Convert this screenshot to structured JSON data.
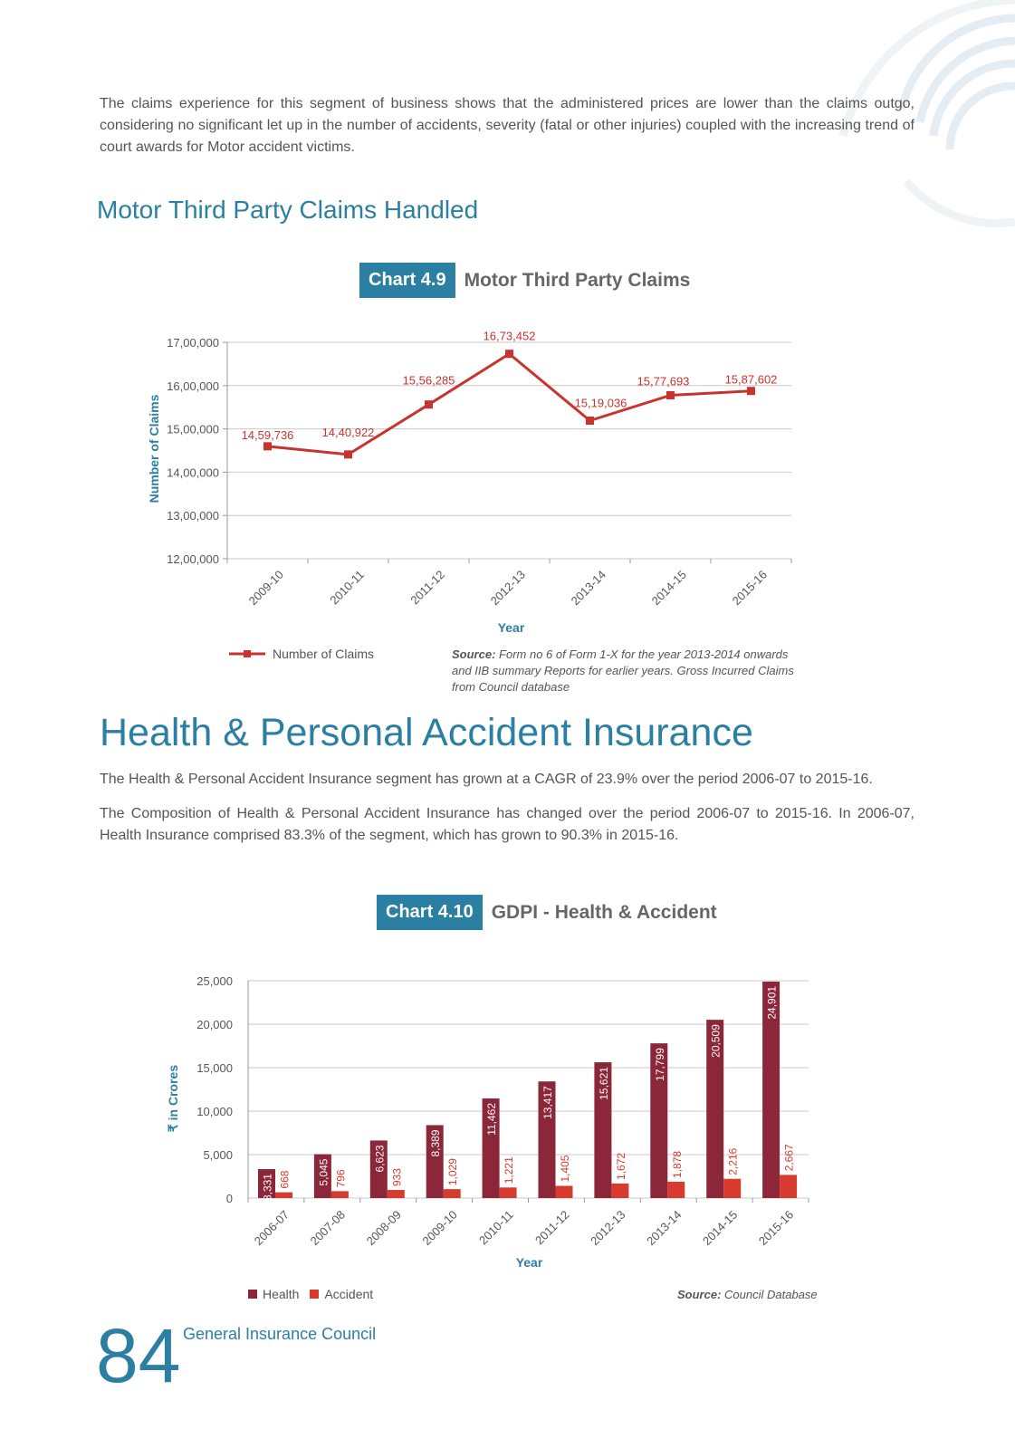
{
  "intro": {
    "text": "The claims experience for this segment of business shows that the administered prices are lower than the claims outgo, considering no significant let up in the number of accidents, severity (fatal or other injuries) coupled with the increasing trend of court awards for Motor accident victims."
  },
  "section1": {
    "heading": "Motor Third Party Claims Handled"
  },
  "chart1": {
    "number": "Chart 4.9",
    "name": "Motor Third Party Claims"
  },
  "chart1_legend": "Number of Claims",
  "chart1_source": {
    "label": "Source:",
    "text": "Form no 6 of Form 1-X for the year 2013-2014 onwards and IIB summary Reports for earlier years. Gross Incurred Claims from Council database"
  },
  "section2": {
    "heading": "Health & Personal Accident Insurance",
    "para1": "The Health & Personal Accident Insurance segment has grown at a CAGR of 23.9% over the period 2006-07 to 2015-16.",
    "para2": "The Composition of Health & Personal Accident Insurance has changed over the period 2006-07 to 2015-16. In 2006-07, Health Insurance comprised 83.3% of the segment, which has grown to 90.3% in 2015-16."
  },
  "chart2": {
    "number": "Chart 4.10",
    "name": "GDPI - Health & Accident"
  },
  "chart2_legend": {
    "health": "Health",
    "accident": "Accident"
  },
  "chart2_source": {
    "label": "Source:",
    "text": "Council Database"
  },
  "footer": {
    "page": "84",
    "org": "General Insurance Council"
  },
  "colors": {
    "accent": "#2b7fa2",
    "line": "#c8332e",
    "health": "#8c2639",
    "accident": "#d93a2e"
  },
  "chart_data": [
    {
      "type": "line",
      "title": "Motor Third Party Claims",
      "xlabel": "Year",
      "ylabel": "Number of Claims",
      "ylim": [
        1200000,
        1700000
      ],
      "yticks": [
        1200000,
        1300000,
        1400000,
        1500000,
        1600000,
        1700000
      ],
      "ytick_labels": [
        "12,00,000",
        "13,00,000",
        "14,00,000",
        "15,00,000",
        "16,00,000",
        "17,00,000"
      ],
      "categories": [
        "2009-10",
        "2010-11",
        "2011-12",
        "2012-13",
        "2013-14",
        "2014-15",
        "2015-16"
      ],
      "series": [
        {
          "name": "Number of Claims",
          "values": [
            1459736,
            1440922,
            1556285,
            1673452,
            1519036,
            1577693,
            1587602
          ],
          "labels": [
            "14,59,736",
            "14,40,922",
            "15,56,285",
            "16,73,452",
            "15,19,036",
            "15,77,693",
            "15,87,602"
          ]
        }
      ],
      "grid": true,
      "legend": "bottom-left"
    },
    {
      "type": "bar",
      "title": "GDPI - Health & Accident",
      "xlabel": "Year",
      "ylabel": "₹ in Crores",
      "ylim": [
        0,
        25000
      ],
      "yticks": [
        0,
        5000,
        10000,
        15000,
        20000,
        25000
      ],
      "ytick_labels": [
        "0",
        "5,000",
        "10,000",
        "15,000",
        "20,000",
        "25,000"
      ],
      "categories": [
        "2006-07",
        "2007-08",
        "2008-09",
        "2009-10",
        "2010-11",
        "2011-12",
        "2012-13",
        "2013-14",
        "2014-15",
        "2015-16"
      ],
      "series": [
        {
          "name": "Health",
          "values": [
            3331,
            5045,
            6623,
            8389,
            11462,
            13417,
            15621,
            17799,
            20509,
            24901
          ],
          "labels": [
            "3,331",
            "5,045",
            "6,623",
            "8,389",
            "11,462",
            "13,417",
            "15,621",
            "17,799",
            "20,509",
            "24,901"
          ]
        },
        {
          "name": "Accident",
          "values": [
            668,
            796,
            933,
            1029,
            1221,
            1405,
            1672,
            1878,
            2216,
            2667
          ],
          "labels": [
            "668",
            "796",
            "933",
            "1,029",
            "1,221",
            "1,405",
            "1,672",
            "1,878",
            "2,216",
            "2,667"
          ]
        }
      ],
      "grid": true,
      "legend": "bottom-left"
    }
  ]
}
